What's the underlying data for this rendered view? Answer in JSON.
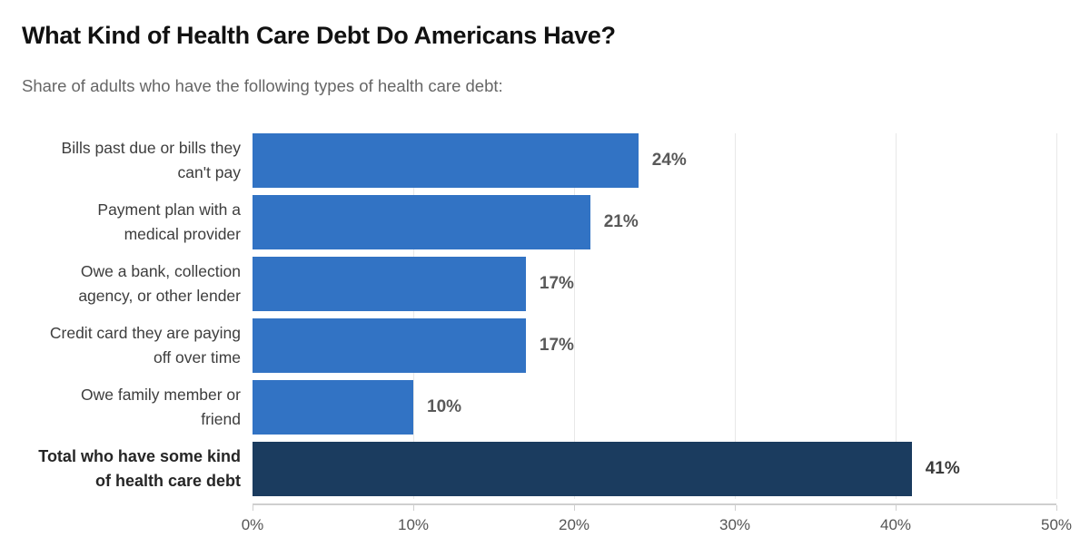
{
  "header": {
    "title": "What Kind of Health Care Debt Do Americans Have?",
    "subtitle": "Share of adults who have the following types of health care debt:"
  },
  "chart_data": {
    "type": "bar",
    "orientation": "horizontal",
    "title": "What Kind of Health Care Debt Do Americans Have?",
    "subtitle": "Share of adults who have the following types of health care debt:",
    "xlabel": "",
    "ylabel": "",
    "xlim": [
      0,
      50
    ],
    "x_tick_labels": [
      "0%",
      "10%",
      "20%",
      "30%",
      "40%",
      "50%"
    ],
    "grid": "vertical-light",
    "legend": "none",
    "categories": [
      "Bills past due or bills they can't pay",
      "Payment plan with a medical provider",
      "Owe a bank, collection agency, or other lender",
      "Credit card they are paying off over time",
      "Owe family member or friend",
      "Total who have some kind of health care debt"
    ],
    "values": [
      24,
      21,
      17,
      17,
      10,
      41
    ],
    "rows": [
      {
        "label_lines": [
          "Bills past due or bills they",
          "can't pay"
        ],
        "value": 24,
        "value_label": "24%",
        "color": "#3273c4",
        "bold": false
      },
      {
        "label_lines": [
          "Payment plan with a",
          "medical provider"
        ],
        "value": 21,
        "value_label": "21%",
        "color": "#3273c4",
        "bold": false
      },
      {
        "label_lines": [
          "Owe a bank, collection",
          "agency, or other lender"
        ],
        "value": 17,
        "value_label": "17%",
        "color": "#3273c4",
        "bold": false
      },
      {
        "label_lines": [
          "Credit card they are paying",
          "off over time"
        ],
        "value": 17,
        "value_label": "17%",
        "color": "#3273c4",
        "bold": false
      },
      {
        "label_lines": [
          "Owe family member or",
          "friend"
        ],
        "value": 10,
        "value_label": "10%",
        "color": "#3273c4",
        "bold": false
      },
      {
        "label_lines": [
          "Total who have some kind",
          "of health care debt"
        ],
        "value": 41,
        "value_label": "41%",
        "color": "#1b3c5f",
        "bold": true
      }
    ],
    "colors": {
      "bar": "#3273c4",
      "total_bar": "#1b3c5f",
      "gridline": "#e8e8e8",
      "axis_line": "#cfcfcf",
      "title_text": "#111111",
      "subtitle_text": "#666666",
      "category_text": "#3d3d3d",
      "value_text": "#595959"
    }
  }
}
